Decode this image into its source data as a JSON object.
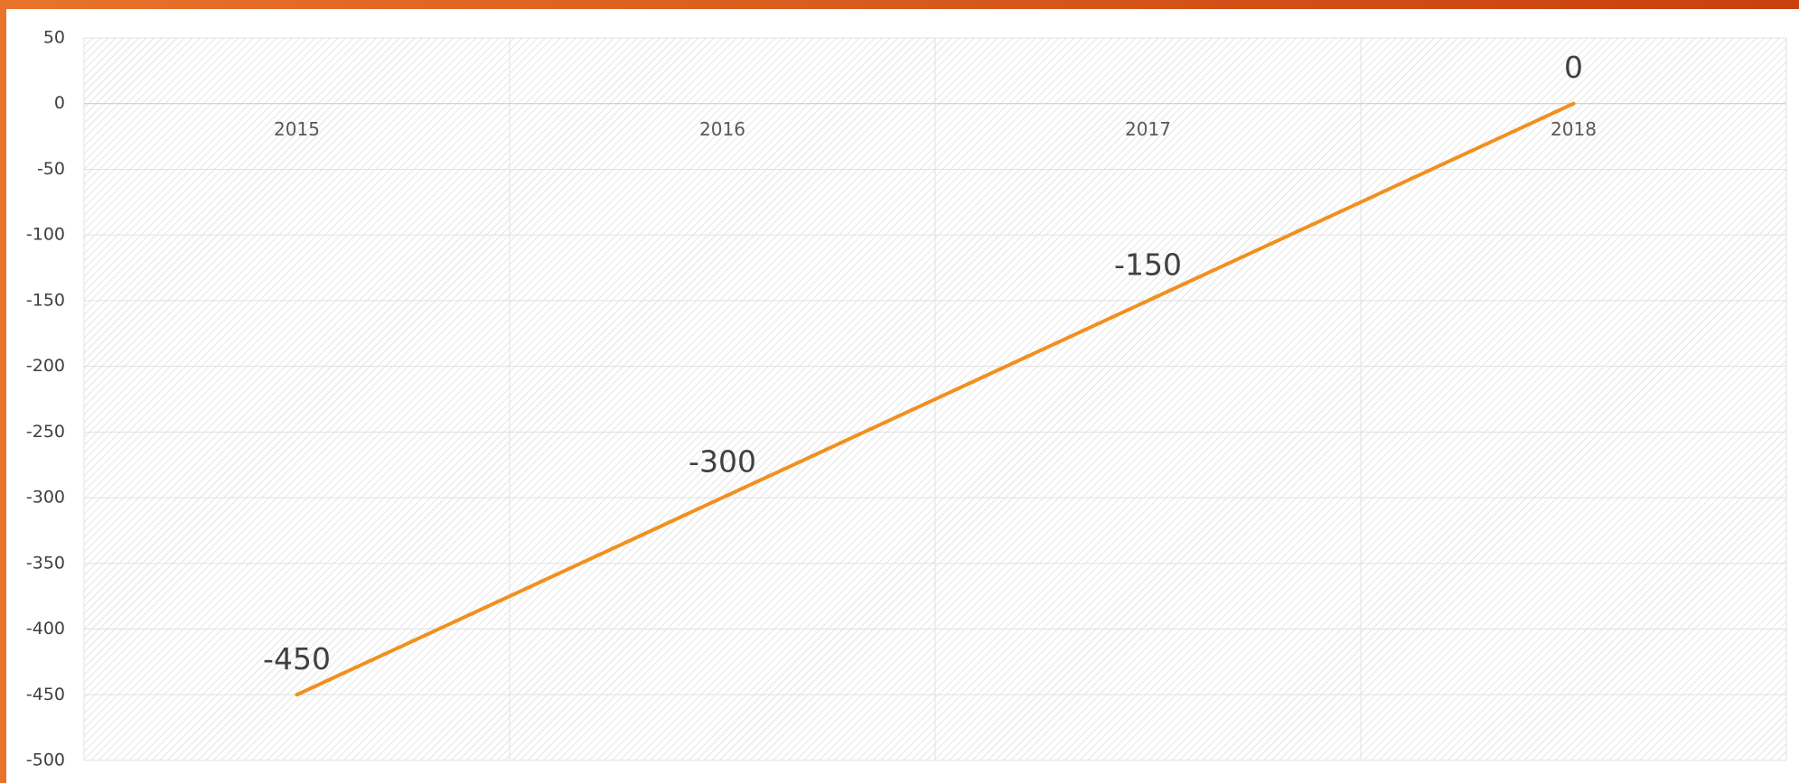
{
  "chart_data": {
    "type": "line",
    "categories": [
      "2015",
      "2016",
      "2017",
      "2018"
    ],
    "series": [
      {
        "color": "#f0901e",
        "values": [
          -450,
          -300,
          -150,
          0
        ]
      }
    ],
    "ylim": [
      -500,
      50
    ],
    "yticks": [
      -500,
      -450,
      -400,
      -350,
      -300,
      -250,
      -200,
      -150,
      -100,
      -50,
      0,
      50
    ],
    "grid": true
  }
}
